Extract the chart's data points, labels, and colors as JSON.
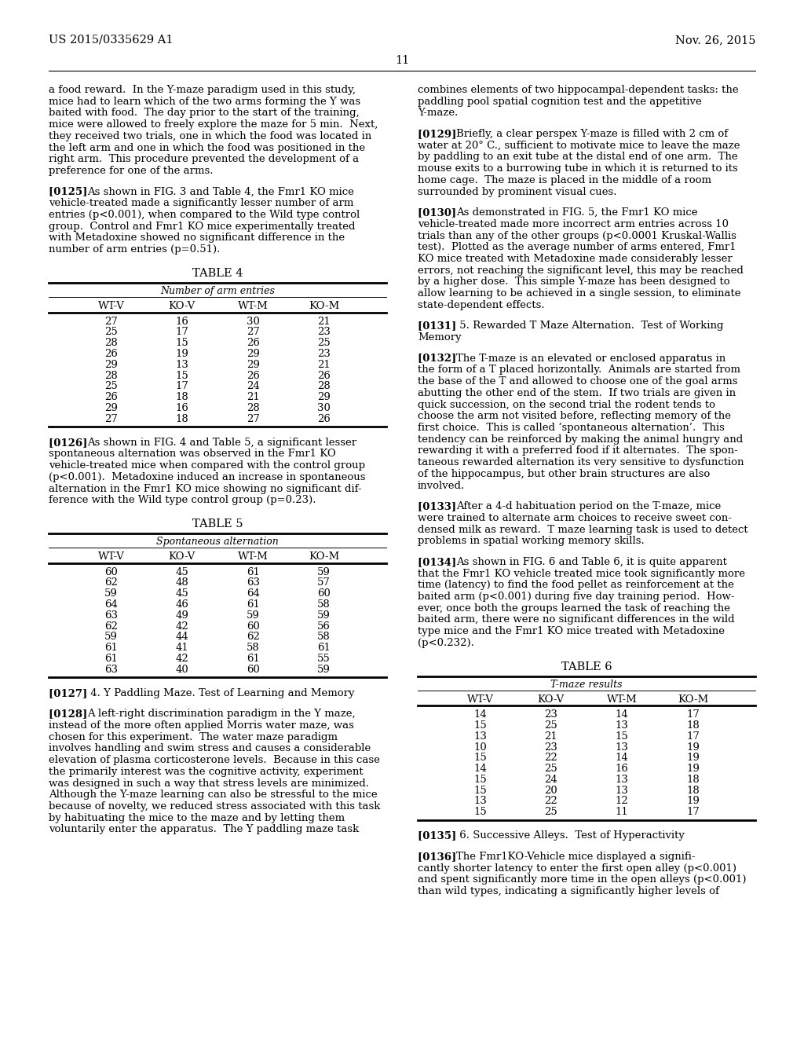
{
  "header_left": "US 2015/0335629 A1",
  "header_right": "Nov. 26, 2015",
  "page_number": "11",
  "body_font_size": 9.5,
  "header_font_size": 10.5,
  "table_title_size": 10.5,
  "table_data_size": 9.5,
  "table4": {
    "title": "TABLE 4",
    "subtitle": "Number of arm entries",
    "headers": [
      "WT-V",
      "KO-V",
      "WT-M",
      "KO-M"
    ],
    "data": [
      [
        27,
        16,
        30,
        21
      ],
      [
        25,
        17,
        27,
        23
      ],
      [
        28,
        15,
        26,
        25
      ],
      [
        26,
        19,
        29,
        23
      ],
      [
        29,
        13,
        29,
        21
      ],
      [
        28,
        15,
        26,
        26
      ],
      [
        25,
        17,
        24,
        28
      ],
      [
        26,
        18,
        21,
        29
      ],
      [
        29,
        16,
        28,
        30
      ],
      [
        27,
        18,
        27,
        26
      ]
    ]
  },
  "table5": {
    "title": "TABLE 5",
    "subtitle": "Spontaneous alternation",
    "headers": [
      "WT-V",
      "KO-V",
      "WT-M",
      "KO-M"
    ],
    "data": [
      [
        60,
        45,
        61,
        59
      ],
      [
        62,
        48,
        63,
        57
      ],
      [
        59,
        45,
        64,
        60
      ],
      [
        64,
        46,
        61,
        58
      ],
      [
        63,
        49,
        59,
        59
      ],
      [
        62,
        42,
        60,
        56
      ],
      [
        59,
        44,
        62,
        58
      ],
      [
        61,
        41,
        58,
        61
      ],
      [
        61,
        42,
        61,
        55
      ],
      [
        63,
        40,
        60,
        59
      ]
    ]
  },
  "table6": {
    "title": "TABLE 6",
    "subtitle": "T-maze results",
    "headers": [
      "WT-V",
      "KO-V",
      "WT-M",
      "KO-M"
    ],
    "data": [
      [
        14,
        23,
        14,
        17
      ],
      [
        15,
        25,
        13,
        18
      ],
      [
        13,
        21,
        15,
        17
      ],
      [
        10,
        23,
        13,
        19
      ],
      [
        15,
        22,
        14,
        19
      ],
      [
        14,
        25,
        16,
        19
      ],
      [
        15,
        24,
        13,
        18
      ],
      [
        15,
        20,
        13,
        18
      ],
      [
        13,
        22,
        12,
        19
      ],
      [
        15,
        25,
        11,
        17
      ]
    ]
  },
  "left_blocks": [
    {
      "type": "text",
      "lines": [
        "a food reward.  In the Y-maze paradigm used in this study,",
        "mice had to learn which of the two arms forming the Y was",
        "baited with food.  The day prior to the start of the training,",
        "mice were allowed to freely explore the maze for 5 min.  Next,",
        "they received two trials, one in which the food was located in",
        "the left arm and one in which the food was positioned in the",
        "right arm.  This procedure prevented the development of a",
        "preference for one of the arms."
      ]
    },
    {
      "type": "para",
      "tag": "[0125]",
      "lines": [
        "As shown in FIG. 3 and Table 4, the Fmr1 KO mice",
        "vehicle-treated made a significantly lesser number of arm",
        "entries (p<0.001), when compared to the Wild type control",
        "group.  Control and Fmr1 KO mice experimentally treated",
        "with Metadoxine showed no significant difference in the",
        "number of arm entries (p=0.51)."
      ]
    },
    {
      "type": "table",
      "key": "table4"
    },
    {
      "type": "para",
      "tag": "[0126]",
      "lines": [
        "As shown in FIG. 4 and Table 5, a significant lesser",
        "spontaneous alternation was observed in the Fmr1 KO",
        "vehicle-treated mice when compared with the control group",
        "(p<0.001).  Metadoxine induced an increase in spontaneous",
        "alternation in the Fmr1 KO mice showing no significant dif-",
        "ference with the Wild type control group (p=0.23)."
      ]
    },
    {
      "type": "table",
      "key": "table5"
    },
    {
      "type": "para",
      "tag": "[0127]",
      "lines": [
        " 4. Y Paddling Maze. Test of Learning and Memory"
      ]
    },
    {
      "type": "para",
      "tag": "[0128]",
      "lines": [
        "A left-right discrimination paradigm in the Y maze,",
        "instead of the more often applied Morris water maze, was",
        "chosen for this experiment.  The water maze paradigm",
        "involves handling and swim stress and causes a considerable",
        "elevation of plasma corticosterone levels.  Because in this case",
        "the primarily interest was the cognitive activity, experiment",
        "was designed in such a way that stress levels are minimized.",
        "Although the Y-maze learning can also be stressful to the mice",
        "because of novelty, we reduced stress associated with this task",
        "by habituating the mice to the maze and by letting them",
        "voluntarily enter the apparatus.  The Y paddling maze task"
      ]
    }
  ],
  "right_blocks": [
    {
      "type": "text",
      "lines": [
        "combines elements of two hippocampal-dependent tasks: the",
        "paddling pool spatial cognition test and the appetitive",
        "Y-maze."
      ]
    },
    {
      "type": "para",
      "tag": "[0129]",
      "lines": [
        "Briefly, a clear perspex Y-maze is filled with 2 cm of",
        "water at 20° C., sufficient to motivate mice to leave the maze",
        "by paddling to an exit tube at the distal end of one arm.  The",
        "mouse exits to a burrowing tube in which it is returned to its",
        "home cage.  The maze is placed in the middle of a room",
        "surrounded by prominent visual cues."
      ]
    },
    {
      "type": "para",
      "tag": "[0130]",
      "lines": [
        "As demonstrated in FIG. 5, the Fmr1 KO mice",
        "vehicle-treated made more incorrect arm entries across 10",
        "trials than any of the other groups (p<0.0001 Kruskal-Wallis",
        "test).  Plotted as the average number of arms entered, Fmr1",
        "KO mice treated with Metadoxine made considerably lesser",
        "errors, not reaching the significant level, this may be reached",
        "by a higher dose.  This simple Y-maze has been designed to",
        "allow learning to be achieved in a single session, to eliminate",
        "state-dependent effects."
      ]
    },
    {
      "type": "para",
      "tag": "[0131]",
      "lines": [
        " 5. Rewarded T Maze Alternation.  Test of Working",
        "Memory"
      ]
    },
    {
      "type": "para",
      "tag": "[0132]",
      "lines": [
        "The T-maze is an elevated or enclosed apparatus in",
        "the form of a T placed horizontally.  Animals are started from",
        "the base of the T and allowed to choose one of the goal arms",
        "abutting the other end of the stem.  If two trials are given in",
        "quick succession, on the second trial the rodent tends to",
        "choose the arm not visited before, reflecting memory of the",
        "first choice.  This is called ‘spontaneous alternation’.  This",
        "tendency can be reinforced by making the animal hungry and",
        "rewarding it with a preferred food if it alternates.  The spon-",
        "taneous rewarded alternation its very sensitive to dysfunction",
        "of the hippocampus, but other brain structures are also",
        "involved."
      ]
    },
    {
      "type": "para",
      "tag": "[0133]",
      "lines": [
        "After a 4-d habituation period on the T-maze, mice",
        "were trained to alternate arm choices to receive sweet con-",
        "densed milk as reward.  T maze learning task is used to detect",
        "problems in spatial working memory skills."
      ]
    },
    {
      "type": "para",
      "tag": "[0134]",
      "lines": [
        "As shown in FIG. 6 and Table 6, it is quite apparent",
        "that the Fmr1 KO vehicle treated mice took significantly more",
        "time (latency) to find the food pellet as reinforcement at the",
        "baited arm (p<0.001) during five day training period.  How-",
        "ever, once both the groups learned the task of reaching the",
        "baited arm, there were no significant differences in the wild",
        "type mice and the Fmr1 KO mice treated with Metadoxine",
        "(p<0.232)."
      ]
    },
    {
      "type": "table",
      "key": "table6"
    },
    {
      "type": "para",
      "tag": "[0135]",
      "lines": [
        " 6. Successive Alleys.  Test of Hyperactivity"
      ]
    },
    {
      "type": "para",
      "tag": "[0136]",
      "lines": [
        "The Fmr1KO-Vehicle mice displayed a signifi-",
        "cantly shorter latency to enter the first open alley (p<0.001)",
        "and spent significantly more time in the open alleys (p<0.001)",
        "than wild types, indicating a significantly higher levels of"
      ]
    }
  ]
}
